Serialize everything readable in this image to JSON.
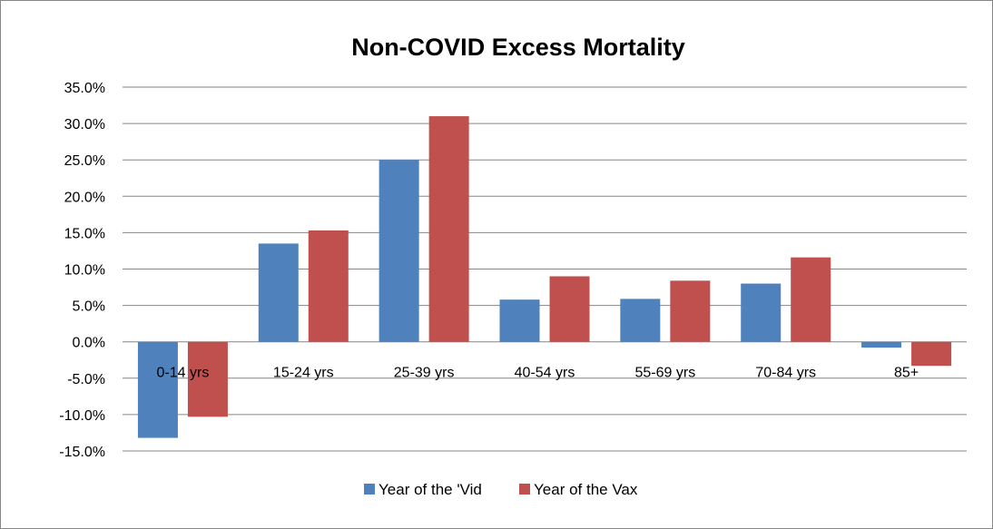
{
  "chart_data": {
    "type": "bar",
    "title": "Non-COVID Excess Mortality",
    "categories": [
      "0-14 yrs",
      "15-24 yrs",
      "25-39 yrs",
      "40-54 yrs",
      "55-69 yrs",
      "70-84 yrs",
      "85+"
    ],
    "series": [
      {
        "name": "Year of the 'Vid",
        "color": "#4f81bd",
        "values": [
          -13.2,
          13.5,
          25.0,
          5.8,
          5.9,
          8.0,
          -0.8
        ]
      },
      {
        "name": "Year of the Vax",
        "color": "#c0504d",
        "values": [
          -10.3,
          15.3,
          31.0,
          9.0,
          8.4,
          11.6,
          -3.3
        ]
      }
    ],
    "ylim": [
      -15,
      35
    ],
    "yticks": [
      "-15.0%",
      "-10.0%",
      "-5.0%",
      "0.0%",
      "5.0%",
      "10.0%",
      "15.0%",
      "20.0%",
      "25.0%",
      "30.0%",
      "35.0%"
    ],
    "grid": true,
    "legend": "bottom"
  }
}
